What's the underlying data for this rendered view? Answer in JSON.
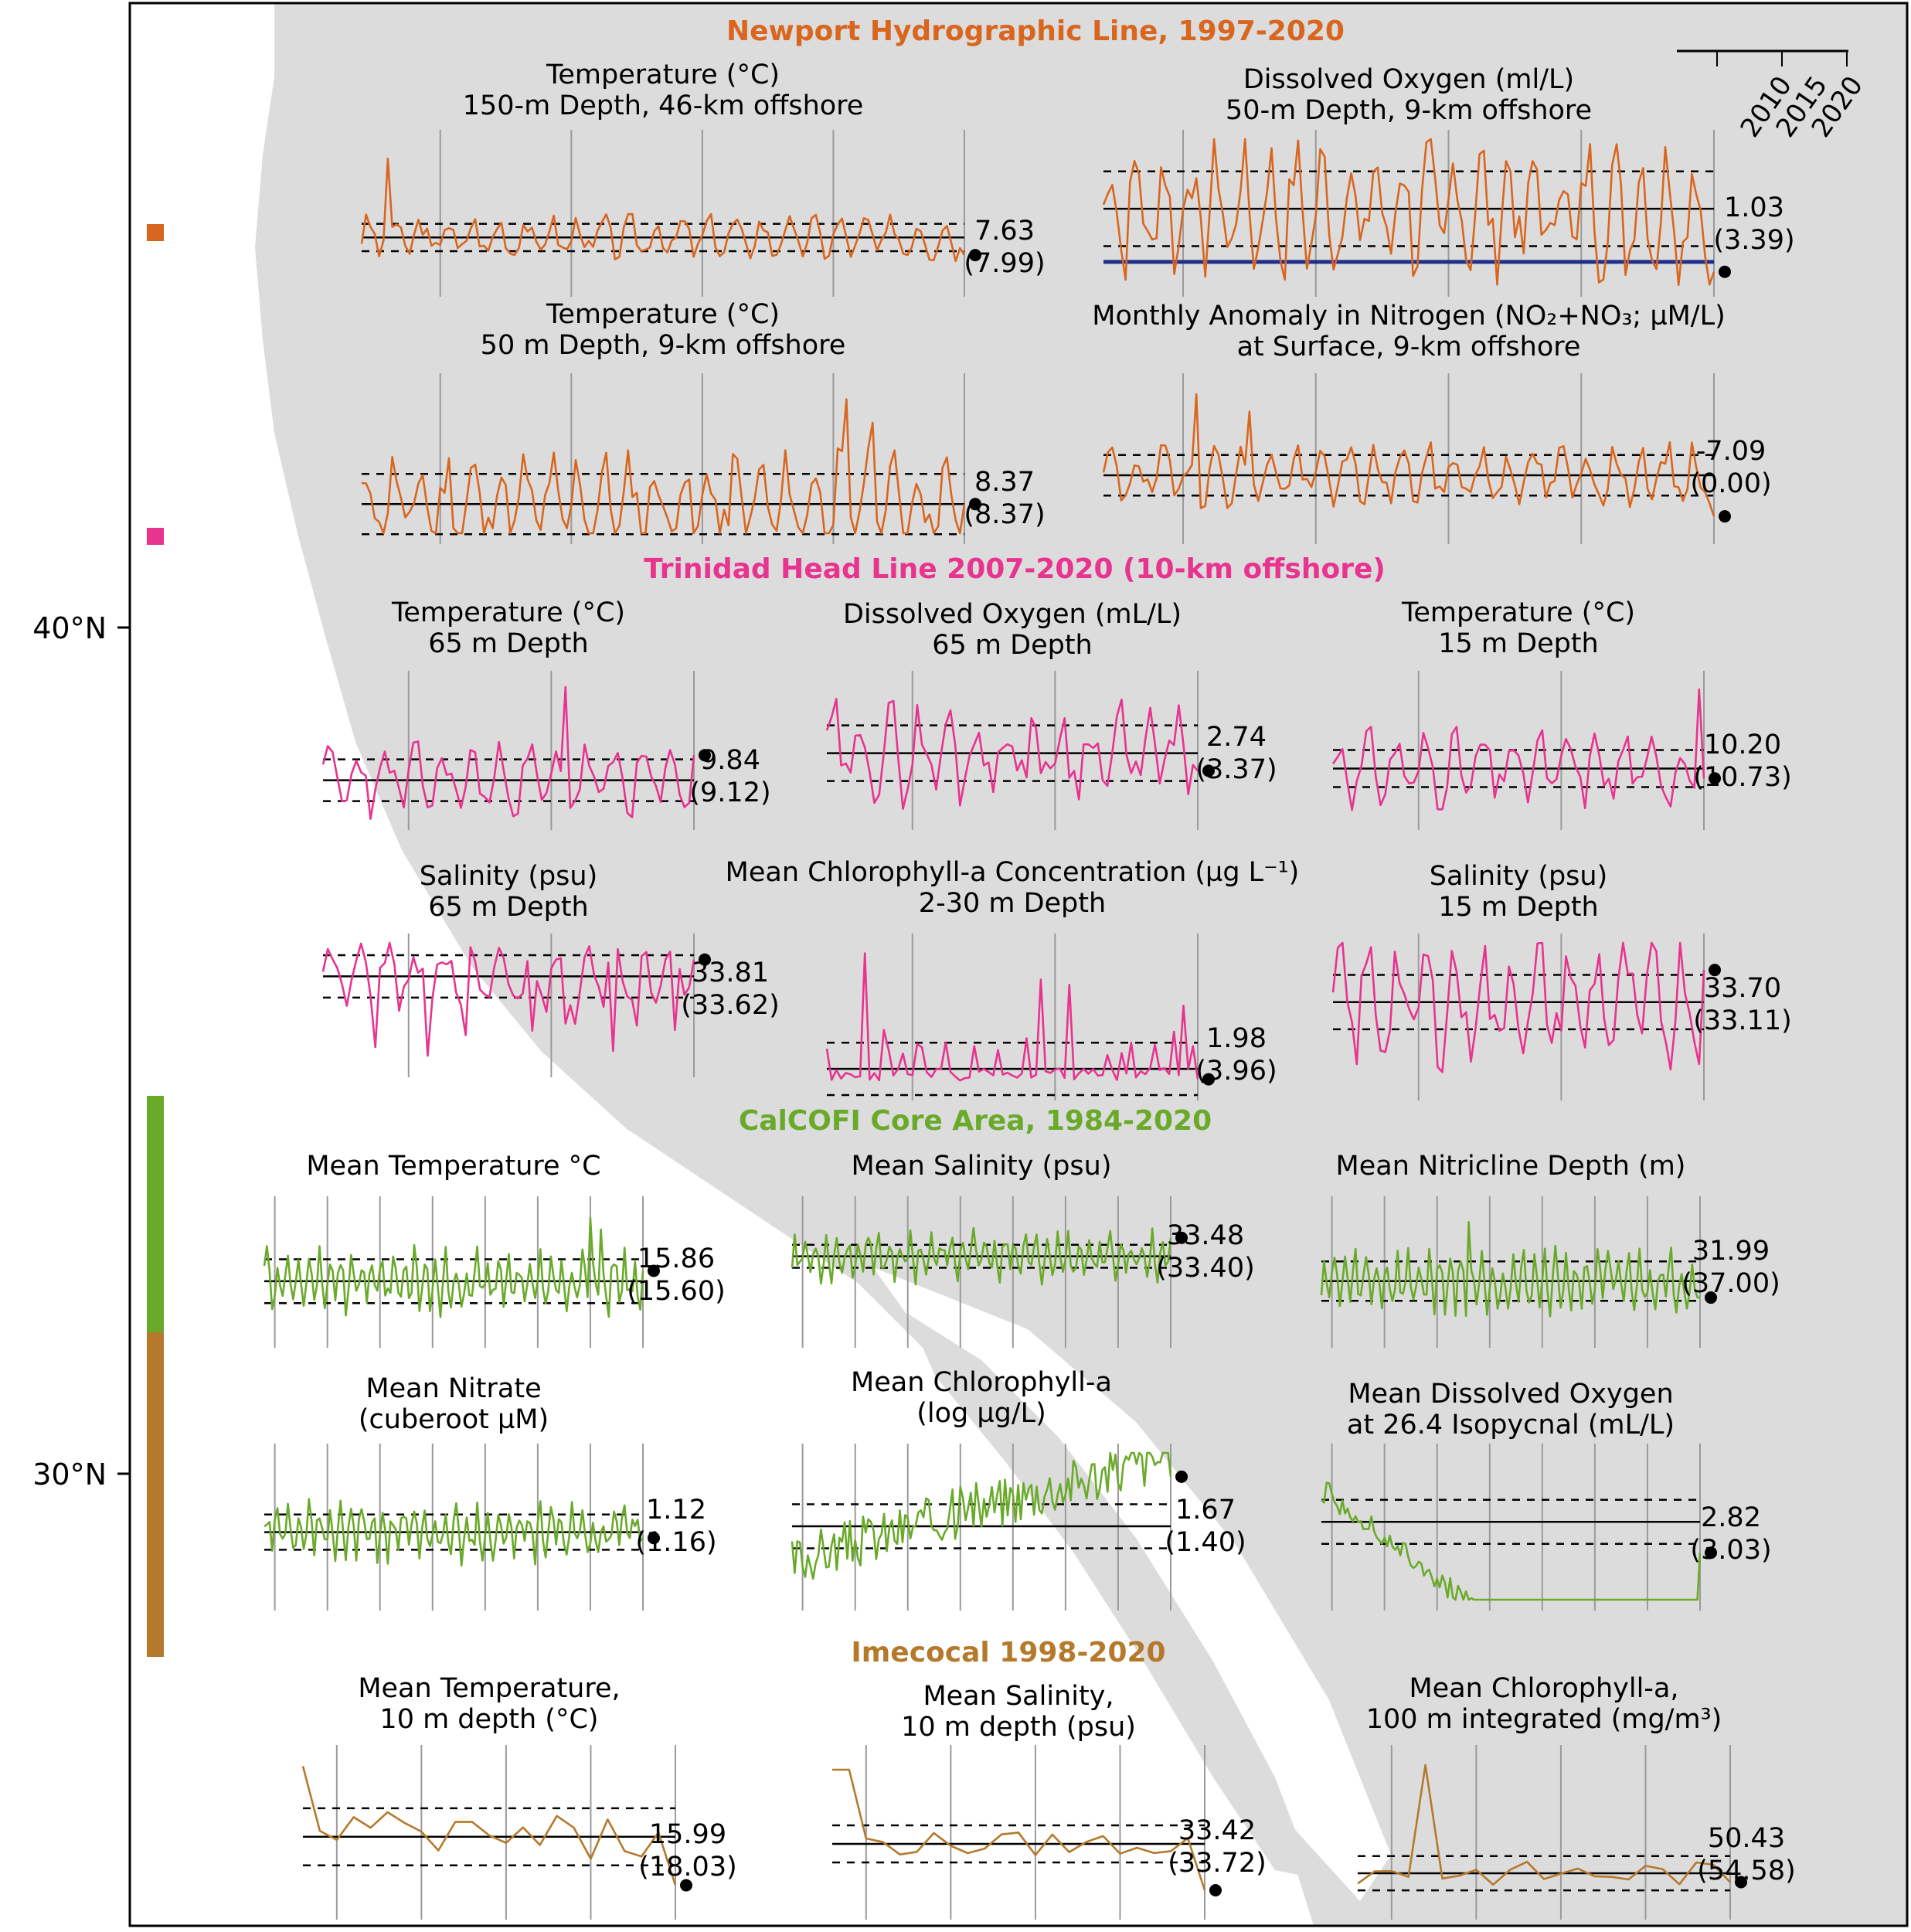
{
  "lat_labels": [
    "40°N",
    "30°N"
  ],
  "legend_years": [
    "2010",
    "2015",
    "2020"
  ],
  "colors": {
    "newport": "#d9661f",
    "trinidad": "#e8338f",
    "calcofi": "#6aaa2a",
    "imecocal": "#b5792b",
    "land": "#dcdcdc",
    "ocean": "#ffffff",
    "dark_blue": "#1f2f8c"
  },
  "sections": [
    {
      "id": "newport",
      "title": "Newport Hydrographic Line, 1997-2020",
      "color": "#d9661f"
    },
    {
      "id": "trinidad",
      "title": "Trinidad Head Line 2007-2020 (10-km offshore)",
      "color": "#e8338f"
    },
    {
      "id": "calcofi",
      "title": "CalCOFI Core Area, 1984-2020",
      "color": "#6aaa2a"
    },
    {
      "id": "imecocal",
      "title": "Imecocal 1998-2020",
      "color": "#b5792b"
    }
  ],
  "chart_data": [
    {
      "type": "line",
      "section": "newport",
      "title_lines": [
        "Temperature (°C)",
        "150-m Depth, 46-km offshore"
      ],
      "value_lines": [
        "7.63",
        "(7.99)"
      ],
      "x_range": [
        1997,
        2020
      ],
      "ylim": [
        7.0,
        10.0
      ],
      "mean": 7.99,
      "sd": 0.28,
      "last": 7.63,
      "peaks": [
        [
          1998,
          9.6
        ]
      ],
      "amp": 0.35,
      "seed": 3
    },
    {
      "type": "line",
      "section": "newport",
      "title_lines": [
        "Dissolved Oxygen (ml/L)",
        "50-m Depth, 9-km offshore"
      ],
      "value_lines": [
        "1.03",
        "(3.39)"
      ],
      "x_range": [
        1997,
        2020
      ],
      "ylim": [
        0.5,
        6.0
      ],
      "mean": 3.39,
      "sd": 1.4,
      "last": 1.03,
      "amp": 2.0,
      "seed": 7,
      "hypoxia_line": 1.4
    },
    {
      "type": "line",
      "section": "newport",
      "title_lines": [
        "Temperature (°C)",
        "50 m Depth, 9-km offshore"
      ],
      "value_lines": [
        "8.37",
        "(8.37)"
      ],
      "x_range": [
        1997,
        2020
      ],
      "ylim": [
        7.5,
        12.0
      ],
      "mean": 8.37,
      "sd": 0.9,
      "last": 8.37,
      "peaks": [
        [
          2015.5,
          11.5
        ],
        [
          2016.5,
          10.8
        ]
      ],
      "amp": 1.2,
      "seed": 11
    },
    {
      "type": "line",
      "section": "newport",
      "title_lines": [
        "Monthly Anomaly in Nitrogen (NO₂+NO₃; µM/L)",
        "at Surface, 9-km offshore"
      ],
      "value_lines": [
        "-7.09",
        "(0.00)"
      ],
      "x_range": [
        1997,
        2020
      ],
      "ylim": [
        -10,
        16
      ],
      "mean": 0.0,
      "sd": 3.5,
      "last": -7.09,
      "peaks": [
        [
          2000.5,
          14
        ],
        [
          2002.5,
          11
        ]
      ],
      "amp": 4,
      "seed": 19
    },
    {
      "type": "line",
      "section": "trinidad",
      "title_lines": [
        "Temperature (°C)",
        "65 m Depth"
      ],
      "value_lines": [
        "9.84",
        "(9.12)"
      ],
      "x_range": [
        2007,
        2020
      ],
      "ylim": [
        8.0,
        12.0
      ],
      "mean": 9.12,
      "sd": 0.6,
      "last": 9.84,
      "peaks": [
        [
          2015.5,
          11.8
        ]
      ],
      "amp": 0.8,
      "seed": 23
    },
    {
      "type": "line",
      "section": "trinidad",
      "title_lines": [
        "Dissolved Oxygen (mL/L)",
        "65 m Depth"
      ],
      "value_lines": [
        "2.74",
        "(3.37)"
      ],
      "x_range": [
        2007,
        2020
      ],
      "ylim": [
        1.0,
        6.0
      ],
      "mean": 3.37,
      "sd": 1.0,
      "last": 2.74,
      "amp": 1.4,
      "seed": 29
    },
    {
      "type": "line",
      "section": "trinidad",
      "title_lines": [
        "Temperature (°C)",
        "15 m Depth"
      ],
      "value_lines": [
        "10.20",
        "(10.73)"
      ],
      "x_range": [
        2007,
        2020
      ],
      "ylim": [
        8.0,
        15.5
      ],
      "mean": 10.73,
      "sd": 1.0,
      "last": 10.2,
      "peaks": [
        [
          2019.8,
          15
        ]
      ],
      "amp": 1.6,
      "seed": 31
    },
    {
      "type": "line",
      "section": "trinidad",
      "title_lines": [
        "Salinity (psu)",
        "65 m Depth"
      ],
      "value_lines": [
        "33.81",
        "(33.62)"
      ],
      "x_range": [
        2007,
        2020
      ],
      "ylim": [
        32.6,
        34.0
      ],
      "mean": 33.62,
      "sd": 0.24,
      "last": 33.81,
      "amp": 0.3,
      "seed": 37,
      "dips": true
    },
    {
      "type": "line",
      "section": "trinidad",
      "title_lines": [
        "Mean Chlorophyll-a Concentration (µg L⁻¹)",
        "2-30 m Depth"
      ],
      "value_lines": [
        "1.98",
        "(3.96)"
      ],
      "x_range": [
        2007,
        2020
      ],
      "ylim": [
        0,
        28
      ],
      "mean": 3.96,
      "sd": 5.0,
      "last": 1.98,
      "peaks": [
        [
          2008.3,
          26
        ],
        [
          2014.5,
          21
        ],
        [
          2015.5,
          20
        ],
        [
          2019.5,
          16
        ]
      ],
      "amp": 3,
      "seed": 41,
      "spiky": true
    },
    {
      "type": "line",
      "section": "trinidad",
      "title_lines": [
        "Salinity (psu)",
        "15 m Depth"
      ],
      "value_lines": [
        "33.70",
        "(33.11)"
      ],
      "x_range": [
        2007,
        2020
      ],
      "ylim": [
        31.5,
        34.2
      ],
      "mean": 33.11,
      "sd": 0.5,
      "last": 33.7,
      "amp": 0.9,
      "seed": 43
    },
    {
      "type": "line",
      "section": "calcofi",
      "title_lines": [
        "Mean Temperature °C"
      ],
      "value_lines": [
        "15.86",
        "(15.60)"
      ],
      "x_range": [
        1984,
        2020
      ],
      "ylim": [
        14.2,
        17.5
      ],
      "mean": 15.6,
      "sd": 0.55,
      "last": 15.86,
      "peaks": [
        [
          2015,
          17.2
        ],
        [
          2016,
          16.9
        ]
      ],
      "amp": 0.6,
      "seed": 47
    },
    {
      "type": "line",
      "section": "calcofi",
      "title_lines": [
        "Mean Salinity (psu)"
      ],
      "value_lines": [
        "33.48",
        "(33.40)"
      ],
      "x_range": [
        1984,
        2020
      ],
      "ylim": [
        33.05,
        33.62
      ],
      "mean": 33.4,
      "sd": 0.05,
      "last": 33.48,
      "amp": 0.08,
      "seed": 53
    },
    {
      "type": "line",
      "section": "calcofi",
      "title_lines": [
        "Mean Nitricline Depth (m)"
      ],
      "value_lines": [
        "31.99",
        "(37.00)"
      ],
      "x_range": [
        1984,
        2020
      ],
      "ylim": [
        20,
        60
      ],
      "mean": 37.0,
      "sd": 6.0,
      "last": 31.99,
      "peaks": [
        [
          1998,
          55
        ]
      ],
      "amp": 7,
      "seed": 59
    },
    {
      "type": "line",
      "section": "calcofi",
      "title_lines": [
        "Mean Nitrate",
        "(cuberoot µM)"
      ],
      "value_lines": [
        "1.12",
        "(1.16)"
      ],
      "x_range": [
        1984,
        2020
      ],
      "ylim": [
        0.7,
        1.7
      ],
      "mean": 1.16,
      "sd": 0.12,
      "last": 1.12,
      "amp": 0.15,
      "seed": 61
    },
    {
      "type": "line",
      "section": "calcofi",
      "title_lines": [
        "Mean Chlorophyll-a",
        "(log µg/L)"
      ],
      "value_lines": [
        "1.67",
        "(1.40)"
      ],
      "x_range": [
        1984,
        2020
      ],
      "ylim": [
        1.0,
        1.8
      ],
      "mean": 1.4,
      "sd": 0.12,
      "last": 1.67,
      "amp": 0.14,
      "seed": 67,
      "trend": 0.004
    },
    {
      "type": "line",
      "section": "calcofi",
      "title_lines": [
        "Mean Dissolved Oxygen",
        "at 26.4 Isopycnal (mL/L)"
      ],
      "value_lines": [
        "2.82",
        "(3.03)"
      ],
      "x_range": [
        1984,
        2020
      ],
      "ylim": [
        2.5,
        3.5
      ],
      "mean": 3.03,
      "sd": 0.15,
      "last": 2.82,
      "amp": 0.08,
      "seed": 71,
      "trend": -0.014
    },
    {
      "type": "line",
      "section": "imecocal",
      "title_lines": [
        "Mean Temperature,",
        "10 m depth (°C)"
      ],
      "value_lines": [
        "15.99",
        "(18.03)"
      ],
      "x_range": [
        1998,
        2020
      ],
      "ylim": [
        15.0,
        21.5
      ],
      "mean": 18.03,
      "sd": 1.2,
      "last": 15.99,
      "peaks": [
        [
          1998,
          21
        ]
      ],
      "amp": 1.6,
      "seed": 73,
      "sparse": true
    },
    {
      "type": "line",
      "section": "imecocal",
      "title_lines": [
        "Mean Salinity,",
        "10 m depth (psu)"
      ],
      "value_lines": [
        "33.42",
        "(33.72)"
      ],
      "x_range": [
        1998,
        2020
      ],
      "ylim": [
        33.3,
        34.3
      ],
      "mean": 33.72,
      "sd": 0.12,
      "last": 33.42,
      "peaks": [
        [
          1998.5,
          34.2
        ]
      ],
      "amp": 0.12,
      "seed": 79,
      "sparse": true
    },
    {
      "type": "line",
      "section": "imecocal",
      "title_lines": [
        "Mean Chlorophyll-a,",
        "100 m integrated (mg/m³)"
      ],
      "value_lines": [
        "50.43",
        "(54.58)"
      ],
      "x_range": [
        1998,
        2020
      ],
      "ylim": [
        38,
        110
      ],
      "mean": 54.58,
      "sd": 8.0,
      "last": 50.43,
      "peaks": [
        [
          2002,
          105
        ]
      ],
      "amp": 9,
      "seed": 83,
      "sparse": true
    }
  ]
}
